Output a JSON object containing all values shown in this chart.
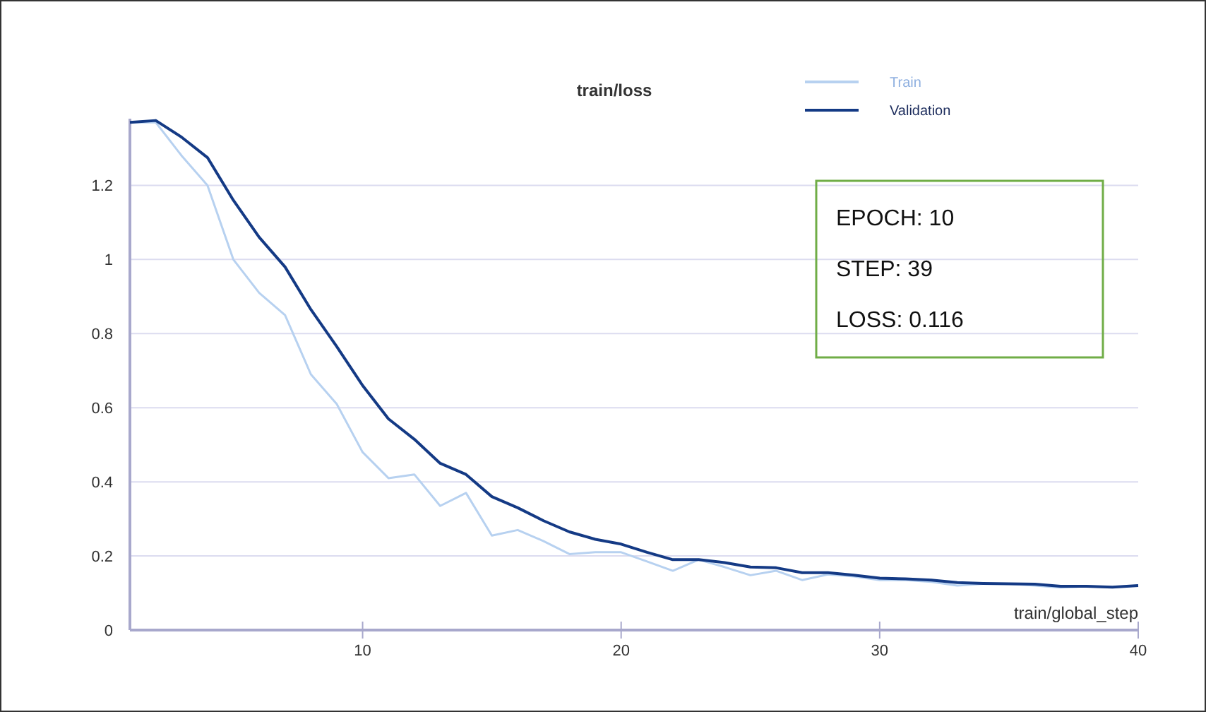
{
  "chart_data": {
    "type": "line",
    "title": "train/loss",
    "xlabel": "train/global_step",
    "x": [
      1,
      2,
      3,
      4,
      5,
      6,
      7,
      8,
      9,
      10,
      11,
      12,
      13,
      14,
      15,
      16,
      17,
      18,
      19,
      20,
      21,
      22,
      23,
      24,
      25,
      26,
      27,
      28,
      29,
      30,
      31,
      32,
      33,
      34,
      35,
      36,
      37,
      38,
      39,
      40
    ],
    "series": [
      {
        "name": "Train",
        "color": "#b7d1f0",
        "values": [
          1.37,
          1.37,
          1.28,
          1.2,
          1.0,
          0.91,
          0.85,
          0.69,
          0.61,
          0.48,
          0.41,
          0.42,
          0.335,
          0.37,
          0.255,
          0.27,
          0.24,
          0.205,
          0.21,
          0.21,
          0.185,
          0.16,
          0.19,
          0.17,
          0.148,
          0.16,
          0.135,
          0.15,
          0.145,
          0.135,
          0.135,
          0.13,
          0.12,
          0.125,
          0.125,
          0.12,
          0.115,
          0.118,
          0.116,
          0.12
        ]
      },
      {
        "name": "Validation",
        "color": "#143a85",
        "values": [
          1.37,
          1.375,
          1.33,
          1.275,
          1.16,
          1.06,
          0.98,
          0.865,
          0.765,
          0.66,
          0.57,
          0.515,
          0.45,
          0.42,
          0.36,
          0.33,
          0.295,
          0.265,
          0.245,
          0.232,
          0.21,
          0.19,
          0.19,
          0.182,
          0.17,
          0.168,
          0.155,
          0.155,
          0.148,
          0.14,
          0.138,
          0.135,
          0.128,
          0.126,
          0.125,
          0.124,
          0.118,
          0.118,
          0.116,
          0.12
        ]
      }
    ],
    "xlim": [
      1,
      40
    ],
    "xticks": [
      10,
      20,
      30,
      40
    ],
    "ylim": [
      0,
      1.38
    ],
    "yticks": [
      0,
      0.2,
      0.4,
      0.6,
      0.8,
      1,
      1.2
    ],
    "grid": "y",
    "legend": "top right",
    "annotations": [
      "EPOCH: 10",
      "STEP: 39",
      "LOSS: 0.116"
    ]
  }
}
